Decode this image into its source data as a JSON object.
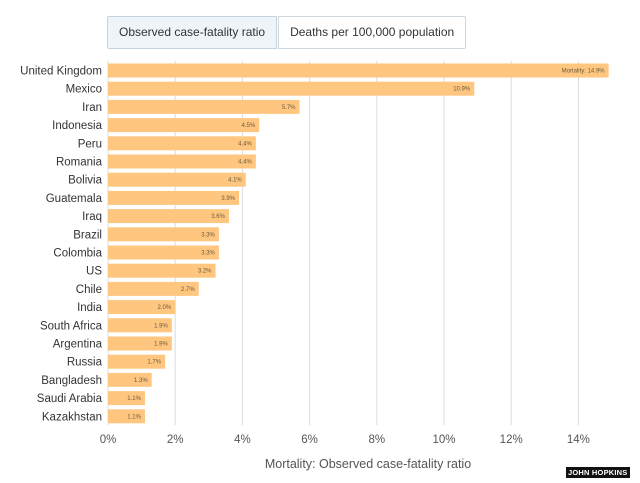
{
  "tabs": {
    "case_fatality": "Observed case-fatality ratio",
    "deaths_per_100k": "Deaths per 100,000 population"
  },
  "source_logo": "JOHN HOPKINS",
  "colors": {
    "bar": "#fec67f",
    "grid": "#dddddd"
  },
  "chart_data": {
    "type": "bar",
    "orientation": "horizontal",
    "title": "",
    "xlabel": "Mortality: Observed case-fatality ratio",
    "ylabel": "",
    "xlim": [
      0,
      15
    ],
    "xticks": [
      0,
      2,
      4,
      6,
      8,
      10,
      12,
      14
    ],
    "tick_labels": [
      "0%",
      "2%",
      "4%",
      "6%",
      "8%",
      "10%",
      "12%",
      "14%"
    ],
    "categories": [
      "United Kingdom",
      "Mexico",
      "Iran",
      "Indonesia",
      "Peru",
      "Romania",
      "Bolivia",
      "Guatemala",
      "Iraq",
      "Brazil",
      "Colombia",
      "US",
      "Chile",
      "India",
      "South Africa",
      "Argentina",
      "Russia",
      "Bangladesh",
      "Saudi Arabia",
      "Kazakhstan"
    ],
    "values": [
      14.9,
      10.9,
      5.7,
      4.5,
      4.4,
      4.4,
      4.1,
      3.9,
      3.6,
      3.3,
      3.3,
      3.2,
      2.7,
      2.0,
      1.9,
      1.9,
      1.7,
      1.3,
      1.1,
      1.1
    ],
    "data_labels": [
      "Mortality: 14.9%",
      "10.9%",
      "5.7%",
      "4.5%",
      "4.4%",
      "4.4%",
      "4.1%",
      "3.9%",
      "3.6%",
      "3.3%",
      "3.3%",
      "3.2%",
      "2.7%",
      "2.0%",
      "1.9%",
      "1.9%",
      "1.7%",
      "1.3%",
      "1.1%",
      "1.1%"
    ]
  }
}
